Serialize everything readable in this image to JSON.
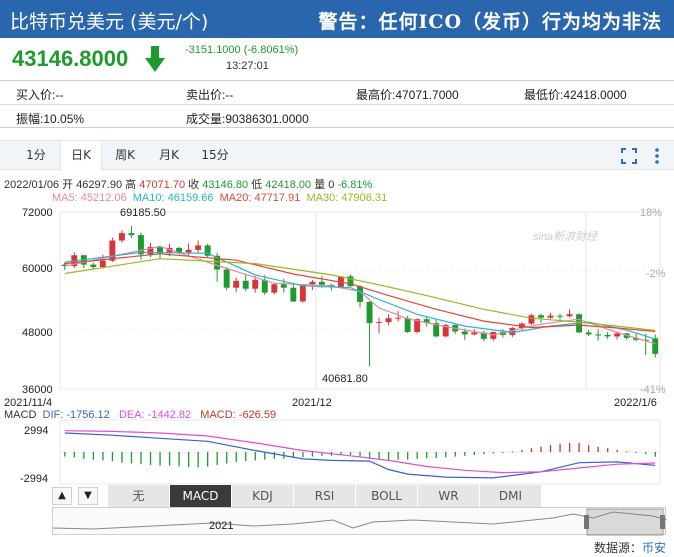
{
  "header": {
    "title": "比特币兑美元 (美元/个)",
    "warning": "警告：任何ICO（发币）行为均为非法"
  },
  "quote": {
    "price": "43146.8000",
    "change": "-3151.1000 (-6.8061%)",
    "time": "13:27:01"
  },
  "info": {
    "buy": "买入价:--",
    "sell": "卖出价:--",
    "high": "最高价:47071.7000",
    "low": "最低价:42418.0000",
    "amplitude": "振幅:10.05%",
    "volume": "成交量:90386301.0000"
  },
  "tabs": [
    "1分",
    "日K",
    "周K",
    "月K",
    "15分"
  ],
  "active_tab": "日K",
  "ohlc": {
    "date": "2022/01/06",
    "open_label": "开",
    "open": "46297.90",
    "high_label": "高",
    "high": "47071.70",
    "close_label": "收",
    "close": "43146.80",
    "low_label": "低",
    "low": "42418.00",
    "vol_label": "量",
    "vol": "0",
    "pct": "-6.81%"
  },
  "ma": {
    "ma5": "MA5: 45212.06",
    "ma10": "MA10: 46159.66",
    "ma20": "MA20: 47717.91",
    "ma30": "MA30: 47906.31"
  },
  "colors": {
    "up": "#d9343a",
    "down": "#1f9a2f",
    "ma5": "#e58aa6",
    "ma10": "#2bb5c9",
    "ma20": "#e0483a",
    "ma30": "#9fb522",
    "dif": "#3c5fd6",
    "dea": "#e04fd2",
    "macd": "#c0392b",
    "header": "#2a66ad"
  },
  "chart_data": {
    "type": "candlestick",
    "y_ticks": [
      "72000",
      "60000",
      "48000",
      "36000"
    ],
    "pct_ticks": [
      "18%",
      "-2%",
      "-41%"
    ],
    "x_ticks": [
      "2021/11/4",
      "2021/12",
      "2022/1/6"
    ],
    "annotations": {
      "max": "69185.50",
      "min": "40681.80"
    },
    "ylim": [
      36000,
      72000
    ],
    "candles": [
      [
        61300,
        61800,
        60200,
        61000
      ],
      [
        61000,
        63800,
        60600,
        63200
      ],
      [
        63200,
        63300,
        60600,
        61300
      ],
      [
        61300,
        61700,
        60400,
        60800
      ],
      [
        60800,
        63300,
        60500,
        62100
      ],
      [
        62100,
        66800,
        61800,
        66200
      ],
      [
        66200,
        68300,
        65800,
        67700
      ],
      [
        67700,
        69185.5,
        66700,
        67300
      ],
      [
        67300,
        67800,
        62300,
        63400
      ],
      [
        63400,
        65700,
        62800,
        64900
      ],
      [
        64900,
        65200,
        62500,
        63600
      ],
      [
        63600,
        65600,
        63000,
        64700
      ],
      [
        64700,
        64900,
        63400,
        63800
      ],
      [
        63800,
        65600,
        63200,
        64300
      ],
      [
        64300,
        66200,
        63600,
        65200
      ],
      [
        65200,
        65500,
        62800,
        63100
      ],
      [
        63100,
        63700,
        57800,
        60300
      ],
      [
        60300,
        60800,
        56100,
        56600
      ],
      [
        56600,
        58700,
        55700,
        58000
      ],
      [
        58000,
        59400,
        55900,
        56400
      ],
      [
        56400,
        59000,
        55600,
        58200
      ],
      [
        58200,
        59200,
        55100,
        55600
      ],
      [
        55600,
        57600,
        55200,
        57300
      ],
      [
        57300,
        58400,
        55600,
        56600
      ],
      [
        56600,
        57600,
        53700,
        53800
      ],
      [
        53800,
        57400,
        53600,
        57300
      ],
      [
        57300,
        58200,
        56100,
        57800
      ],
      [
        57800,
        59000,
        56600,
        57200
      ],
      [
        57200,
        57400,
        56000,
        56800
      ],
      [
        56800,
        59000,
        56400,
        58900
      ],
      [
        58900,
        59300,
        56800,
        56900
      ],
      [
        56900,
        57100,
        52600,
        53700
      ],
      [
        53700,
        53900,
        40681.8,
        49400
      ],
      [
        49400,
        50500,
        47300,
        49600
      ],
      [
        49600,
        51200,
        48900,
        50400
      ],
      [
        50400,
        51900,
        49700,
        50500
      ],
      [
        50400,
        50900,
        47400,
        47600
      ],
      [
        47600,
        50400,
        47300,
        50200
      ],
      [
        50200,
        50800,
        48700,
        49400
      ],
      [
        49400,
        50100,
        46500,
        46700
      ],
      [
        46700,
        49300,
        46500,
        49000
      ],
      [
        49000,
        49100,
        47200,
        47700
      ],
      [
        47700,
        48300,
        46000,
        47100
      ],
      [
        47100,
        48200,
        46900,
        47500
      ],
      [
        47500,
        47800,
        45700,
        46200
      ],
      [
        46200,
        47700,
        45800,
        47600
      ],
      [
        47600,
        48200,
        46500,
        47000
      ],
      [
        47000,
        48600,
        46600,
        48400
      ],
      [
        48400,
        49600,
        48000,
        49300
      ],
      [
        49300,
        51300,
        49000,
        51000
      ],
      [
        51000,
        51300,
        49500,
        50500
      ],
      [
        50500,
        51500,
        50300,
        50900
      ],
      [
        50900,
        51300,
        50100,
        50800
      ],
      [
        50800,
        52200,
        50600,
        51200
      ],
      [
        51200,
        51400,
        47400,
        47500
      ],
      [
        47500,
        48000,
        46800,
        47100
      ],
      [
        47100,
        48200,
        45800,
        47000
      ],
      [
        47000,
        47600,
        46200,
        46700
      ],
      [
        46700,
        47700,
        46100,
        47300
      ],
      [
        47300,
        47400,
        46000,
        46400
      ],
      [
        46400,
        47500,
        45700,
        46000
      ],
      [
        46000,
        47200,
        42900,
        45800
      ],
      [
        46297.9,
        47071.7,
        42418.0,
        43146.8
      ]
    ],
    "ma_lines": {
      "ma5": [
        [
          0,
          61000
        ],
        [
          10,
          65000
        ],
        [
          17,
          60500
        ],
        [
          22,
          57500
        ],
        [
          28,
          57000
        ],
        [
          31,
          55800
        ],
        [
          33,
          52500
        ],
        [
          36,
          50300
        ],
        [
          40,
          48700
        ],
        [
          45,
          47000
        ],
        [
          50,
          49200
        ],
        [
          54,
          50200
        ],
        [
          58,
          47500
        ],
        [
          62,
          45212
        ]
      ],
      "ma10": [
        [
          0,
          61800
        ],
        [
          8,
          63800
        ],
        [
          15,
          63600
        ],
        [
          20,
          59200
        ],
        [
          25,
          57000
        ],
        [
          30,
          56600
        ],
        [
          33,
          54200
        ],
        [
          37,
          51200
        ],
        [
          42,
          48800
        ],
        [
          47,
          47500
        ],
        [
          51,
          48800
        ],
        [
          55,
          49600
        ],
        [
          59,
          48000
        ],
        [
          62,
          46159
        ]
      ],
      "ma20": [
        [
          0,
          61500
        ],
        [
          10,
          63500
        ],
        [
          18,
          62200
        ],
        [
          24,
          59400
        ],
        [
          30,
          57400
        ],
        [
          34,
          55000
        ],
        [
          39,
          52200
        ],
        [
          44,
          49800
        ],
        [
          49,
          48500
        ],
        [
          54,
          49000
        ],
        [
          58,
          48400
        ],
        [
          62,
          47717
        ]
      ],
      "ma30": [
        [
          0,
          59500
        ],
        [
          10,
          62500
        ],
        [
          20,
          61500
        ],
        [
          28,
          59200
        ],
        [
          33,
          57200
        ],
        [
          38,
          55000
        ],
        [
          44,
          52200
        ],
        [
          49,
          50400
        ],
        [
          54,
          49600
        ],
        [
          58,
          48800
        ],
        [
          62,
          47906
        ]
      ]
    },
    "macd": {
      "dif_label": "DIF: -1756.12",
      "dea_label": "DEA: -1442.82",
      "macd_label": "MACD: -626.59",
      "y_ticks": [
        "2994",
        "-2994"
      ],
      "ylim": [
        -4200,
        4200
      ],
      "dif": [
        [
          0,
          2500
        ],
        [
          5,
          2200
        ],
        [
          10,
          1800
        ],
        [
          15,
          1400
        ],
        [
          20,
          200
        ],
        [
          25,
          -900
        ],
        [
          28,
          -1100
        ],
        [
          32,
          -1200
        ],
        [
          34,
          -2300
        ],
        [
          36,
          -2900
        ],
        [
          40,
          -3300
        ],
        [
          45,
          -3400
        ],
        [
          50,
          -2600
        ],
        [
          54,
          -1400
        ],
        [
          58,
          -1300
        ],
        [
          62,
          -1756
        ]
      ],
      "dea": [
        [
          0,
          2800
        ],
        [
          5,
          2700
        ],
        [
          10,
          2500
        ],
        [
          15,
          2100
        ],
        [
          20,
          1200
        ],
        [
          25,
          200
        ],
        [
          30,
          -500
        ],
        [
          34,
          -1100
        ],
        [
          38,
          -1900
        ],
        [
          42,
          -2400
        ],
        [
          46,
          -2700
        ],
        [
          50,
          -2600
        ],
        [
          54,
          -2100
        ],
        [
          58,
          -1600
        ],
        [
          62,
          -1442
        ]
      ],
      "hist": [
        -600,
        -700,
        -900,
        -1000,
        -1100,
        -1200,
        -1400,
        -1500,
        -1600,
        -1700,
        -1800,
        -1800,
        -1900,
        -2000,
        -2000,
        -1900,
        -1700,
        -1500,
        -1300,
        -1200,
        -1100,
        -1000,
        -900,
        -900,
        -800,
        -700,
        -600,
        -500,
        -500,
        -400,
        -400,
        -600,
        -900,
        -1000,
        -1100,
        -1000,
        -1000,
        -900,
        -800,
        -800,
        -700,
        -600,
        -500,
        -400,
        -300,
        -200,
        -100,
        100,
        300,
        500,
        700,
        900,
        1100,
        1200,
        1200,
        900,
        700,
        500,
        300,
        100,
        -100,
        -300,
        -626.59
      ]
    }
  },
  "indicators": [
    "无",
    "MACD",
    "KDJ",
    "RSI",
    "BOLL",
    "WR",
    "DMI"
  ],
  "active_indicator": "MACD",
  "overview": {
    "year": "2021"
  },
  "source": {
    "label": "数据源：",
    "link": "币安"
  },
  "watermark": "sina新浪财经"
}
